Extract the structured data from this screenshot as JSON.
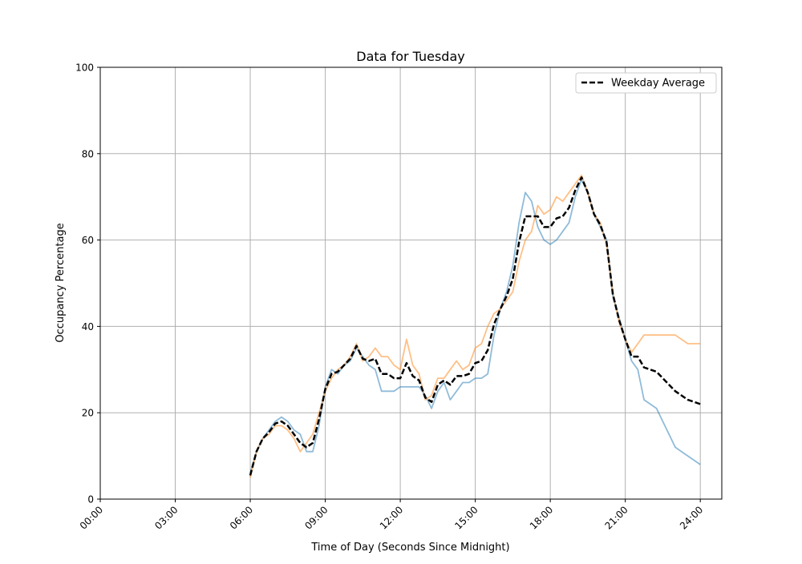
{
  "chart_data": {
    "type": "line",
    "title": "Data for Tuesday",
    "xlabel": "Time of Day (Seconds Since Midnight)",
    "ylabel": "Occupancy Percentage",
    "xlim_hours": [
      0,
      24.86
    ],
    "ylim": [
      0,
      100
    ],
    "grid": true,
    "legend_placement": "top-right",
    "x_ticks": [
      "00:00",
      "03:00",
      "06:00",
      "09:00",
      "12:00",
      "15:00",
      "18:00",
      "21:00",
      "24:00"
    ],
    "x_tick_hours": [
      0,
      3,
      6,
      9,
      12,
      15,
      18,
      21,
      24
    ],
    "y_ticks": [
      "0",
      "20",
      "40",
      "60",
      "80",
      "100"
    ],
    "y_tick_values": [
      0,
      20,
      40,
      60,
      80,
      100
    ],
    "x_start_hours": 6,
    "x_step_hours": 0.25,
    "series": [
      {
        "name": "",
        "color": "#1f77b4",
        "opacity": 0.5,
        "style": "solid",
        "values": [
          6,
          11,
          14,
          16,
          18,
          19,
          18,
          16,
          15,
          11,
          11,
          17,
          26,
          30,
          29,
          31,
          32,
          35,
          33,
          31,
          30,
          25,
          25,
          25,
          26,
          26,
          26,
          26,
          24,
          21,
          25,
          27,
          23,
          25,
          27,
          27,
          28,
          28,
          29,
          38,
          44,
          48,
          54,
          64,
          71,
          69,
          63,
          60,
          59,
          60,
          62,
          64,
          70,
          74,
          71,
          66,
          63,
          60,
          47,
          42,
          37,
          32,
          30,
          23,
          22,
          21,
          18,
          15,
          12,
          11,
          10,
          9,
          8
        ]
      },
      {
        "name": "",
        "color": "#ff7f0e",
        "opacity": 0.5,
        "style": "solid",
        "values": [
          5,
          11,
          14,
          15,
          17,
          17,
          16,
          14,
          11,
          13,
          15,
          20,
          25,
          28,
          30,
          31,
          33,
          36,
          32,
          33,
          35,
          33,
          33,
          31,
          30,
          37,
          31,
          29,
          23,
          24,
          28,
          28,
          30,
          32,
          30,
          31,
          35,
          36,
          40,
          43,
          44,
          46,
          48,
          55,
          60,
          62,
          68,
          66,
          67,
          70,
          69,
          71,
          73,
          75,
          71,
          66,
          64,
          59,
          48,
          41,
          37,
          34,
          36,
          38,
          38,
          38,
          38,
          38,
          38,
          37,
          36,
          36,
          36
        ]
      },
      {
        "name": "Weekday Average",
        "color": "#000000",
        "opacity": 1,
        "style": "dashed",
        "values": [
          5.5,
          11,
          14,
          15.5,
          17.5,
          18,
          17,
          15,
          13,
          12,
          13,
          18.5,
          25.5,
          29,
          29.5,
          31,
          32.5,
          35.5,
          32.5,
          32,
          32.5,
          29,
          29,
          28,
          28,
          31.5,
          28.5,
          27.5,
          23.5,
          22.5,
          26.5,
          27.5,
          26.5,
          28.5,
          28.5,
          29,
          31.5,
          32,
          34.5,
          40.5,
          44,
          47,
          51,
          59.5,
          65.5,
          65.5,
          65.5,
          63,
          63,
          65,
          65.5,
          67.5,
          71.5,
          74.5,
          71,
          66,
          63.5,
          59.5,
          47.5,
          41.5,
          37,
          33,
          33,
          30.5,
          30,
          29.5,
          28,
          26.5,
          25,
          24,
          23,
          22.5,
          22
        ]
      }
    ],
    "legend": [
      "Weekday Average"
    ]
  }
}
